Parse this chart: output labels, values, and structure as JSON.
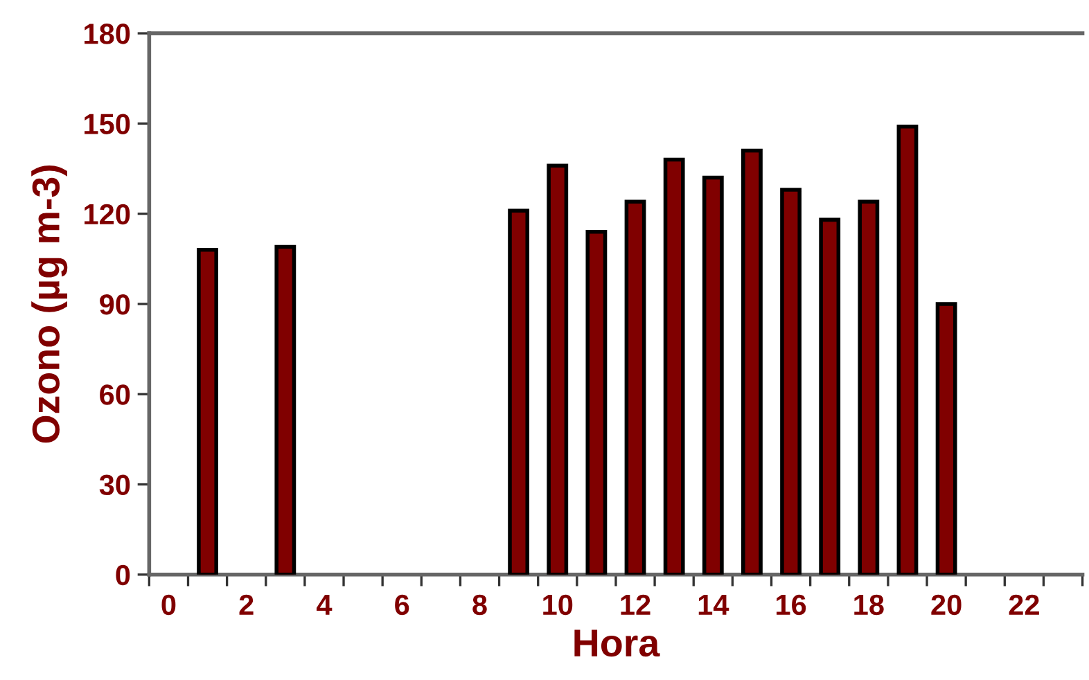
{
  "chart_data": {
    "type": "bar",
    "xlabel": "Hora",
    "ylabel": "Ozono (µg m-3)",
    "categories": [
      "0",
      null,
      "2",
      null,
      "4",
      null,
      "6",
      null,
      "8",
      null,
      "10",
      null,
      "12",
      null,
      "14",
      null,
      "16",
      null,
      "18",
      null,
      "20",
      null,
      "22",
      null
    ],
    "series": [
      {
        "color": "#800000",
        "values": [
          null,
          108,
          null,
          109,
          null,
          null,
          null,
          null,
          null,
          121,
          136,
          114,
          124,
          138,
          132,
          141,
          128,
          118,
          124,
          149,
          90,
          null,
          null,
          null
        ]
      }
    ],
    "ylim": [
      0,
      180
    ],
    "yticks": [
      0,
      30,
      60,
      90,
      120,
      150,
      180
    ],
    "grid": false,
    "legend": false
  }
}
